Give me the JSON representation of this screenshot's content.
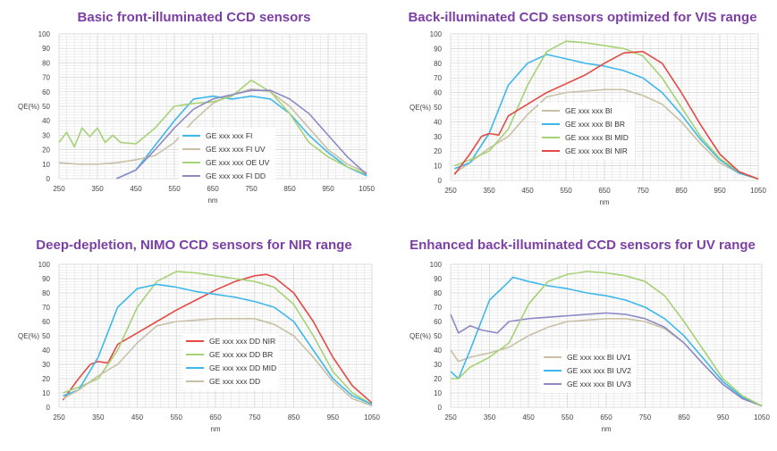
{
  "colors": {
    "blue": "#3db8ea",
    "tan": "#c9c0a6",
    "green": "#a6d276",
    "purple": "#8c89c6",
    "red": "#e34a45",
    "grid": "#d2d2d2",
    "title": "#7b3fa5"
  },
  "chart_data": [
    {
      "type": "line",
      "title": "Basic front-illuminated CCD sensors",
      "xlabel": "nm",
      "ylabel": "QE(%)",
      "xlim": [
        250,
        1050
      ],
      "ylim": [
        0,
        100
      ],
      "xticks": [
        250,
        350,
        450,
        550,
        650,
        750,
        850,
        950,
        1050
      ],
      "yticks": [
        0,
        10,
        20,
        30,
        40,
        50,
        60,
        70,
        80,
        90,
        100
      ],
      "grid": true,
      "legend_position": "center",
      "series": [
        {
          "name": "GE xxx xxx FI",
          "color": "#3db8ea",
          "x": [
            400,
            450,
            500,
            550,
            600,
            650,
            700,
            750,
            800,
            850,
            900,
            950,
            1000,
            1050
          ],
          "y": [
            0,
            6,
            23,
            40,
            55,
            57,
            55,
            57,
            55,
            45,
            30,
            18,
            8,
            2
          ]
        },
        {
          "name": "GE xxx xxx FI UV",
          "color": "#c9c0a6",
          "x": [
            250,
            300,
            350,
            400,
            450,
            500,
            550,
            600,
            650,
            700,
            750,
            800,
            850,
            900,
            950,
            1000,
            1050
          ],
          "y": [
            11,
            10,
            10,
            11,
            13,
            16,
            25,
            40,
            52,
            58,
            62,
            60,
            50,
            35,
            20,
            10,
            4
          ]
        },
        {
          "name": "GE xxx xxx OE UV",
          "color": "#a6d276",
          "x": [
            250,
            270,
            290,
            310,
            330,
            350,
            370,
            390,
            410,
            450,
            500,
            550,
            600,
            650,
            700,
            750,
            800,
            850,
            900,
            950,
            1000,
            1050
          ],
          "y": [
            25,
            32,
            22,
            35,
            29,
            35,
            25,
            30,
            25,
            24,
            35,
            50,
            52,
            53,
            57,
            68,
            60,
            45,
            25,
            15,
            8,
            3
          ]
        },
        {
          "name": "GE xxx xxx FI DD",
          "color": "#8c89c6",
          "x": [
            400,
            450,
            500,
            550,
            600,
            650,
            700,
            750,
            800,
            850,
            900,
            950,
            1000,
            1050
          ],
          "y": [
            0,
            6,
            20,
            35,
            48,
            55,
            58,
            61,
            61,
            55,
            45,
            30,
            15,
            3
          ]
        }
      ]
    },
    {
      "type": "line",
      "title": "Back-illuminated CCD sensors optimized for VIS range",
      "xlabel": "nm",
      "ylabel": "QE(%)",
      "xlim": [
        250,
        1050
      ],
      "ylim": [
        0,
        100
      ],
      "xticks": [
        250,
        350,
        450,
        550,
        650,
        750,
        850,
        950,
        1050
      ],
      "yticks": [
        0,
        10,
        20,
        30,
        40,
        50,
        60,
        70,
        80,
        90,
        100
      ],
      "grid": true,
      "legend_position": "center",
      "series": [
        {
          "name": "GE xxx xxx BI",
          "color": "#c9c0a6",
          "x": [
            260,
            300,
            350,
            400,
            450,
            500,
            550,
            600,
            650,
            700,
            750,
            800,
            850,
            900,
            950,
            1000,
            1050
          ],
          "y": [
            5,
            12,
            22,
            30,
            45,
            57,
            60,
            61,
            62,
            62,
            58,
            52,
            40,
            25,
            12,
            5,
            1
          ]
        },
        {
          "name": "GE xxx xxx BI BR",
          "color": "#3db8ea",
          "x": [
            260,
            300,
            350,
            400,
            450,
            500,
            550,
            600,
            650,
            700,
            750,
            800,
            850,
            900,
            950,
            1000,
            1050
          ],
          "y": [
            8,
            12,
            32,
            65,
            80,
            86,
            83,
            80,
            78,
            75,
            70,
            60,
            45,
            28,
            14,
            5,
            1
          ]
        },
        {
          "name": "GE xxx xxx BI MID",
          "color": "#a6d276",
          "x": [
            260,
            300,
            350,
            400,
            450,
            500,
            550,
            600,
            650,
            700,
            750,
            800,
            850,
            900,
            950,
            1000,
            1050
          ],
          "y": [
            10,
            14,
            20,
            35,
            65,
            88,
            95,
            94,
            92,
            90,
            85,
            70,
            50,
            30,
            15,
            6,
            1
          ]
        },
        {
          "name": "GE xxx xxx BI NIR",
          "color": "#e34a45",
          "x": [
            260,
            300,
            330,
            350,
            375,
            400,
            450,
            500,
            550,
            600,
            650,
            700,
            750,
            800,
            850,
            900,
            950,
            1000,
            1050
          ],
          "y": [
            4,
            18,
            30,
            32,
            31,
            44,
            52,
            60,
            66,
            72,
            80,
            87,
            88,
            80,
            60,
            38,
            18,
            6,
            1
          ]
        }
      ]
    },
    {
      "type": "line",
      "title": "Deep-depletion, NIMO CCD sensors for NIR range",
      "xlabel": "nm",
      "ylabel": "QE(%)",
      "xlim": [
        250,
        1050
      ],
      "ylim": [
        0,
        100
      ],
      "xticks": [
        250,
        350,
        450,
        550,
        650,
        750,
        850,
        950,
        1050
      ],
      "yticks": [
        0,
        10,
        20,
        30,
        40,
        50,
        60,
        70,
        80,
        90,
        100
      ],
      "grid": true,
      "legend_position": "lower center",
      "series": [
        {
          "name": "GE xxx xxx DD NIR",
          "color": "#e34a45",
          "x": [
            260,
            300,
            330,
            350,
            375,
            400,
            450,
            500,
            550,
            600,
            650,
            700,
            750,
            780,
            800,
            850,
            900,
            950,
            1000,
            1050
          ],
          "y": [
            5,
            20,
            30,
            32,
            31,
            44,
            52,
            60,
            68,
            75,
            82,
            88,
            92,
            93,
            91,
            80,
            60,
            35,
            15,
            3
          ]
        },
        {
          "name": "GE xxx xxx DD BR",
          "color": "#a6d276",
          "x": [
            260,
            300,
            350,
            400,
            450,
            500,
            550,
            600,
            650,
            700,
            750,
            800,
            850,
            900,
            950,
            1000,
            1050
          ],
          "y": [
            10,
            14,
            20,
            40,
            70,
            88,
            95,
            94,
            92,
            90,
            88,
            84,
            72,
            50,
            25,
            10,
            2
          ]
        },
        {
          "name": "GE xxx xxx DD MID",
          "color": "#3db8ea",
          "x": [
            260,
            300,
            350,
            400,
            450,
            500,
            550,
            600,
            650,
            700,
            750,
            800,
            850,
            900,
            950,
            1000,
            1050
          ],
          "y": [
            8,
            12,
            35,
            70,
            83,
            86,
            84,
            81,
            79,
            77,
            74,
            70,
            60,
            40,
            20,
            8,
            2
          ]
        },
        {
          "name": "GE xxx xxx DD",
          "color": "#c9c0a6",
          "x": [
            260,
            300,
            350,
            400,
            450,
            500,
            550,
            600,
            650,
            700,
            750,
            800,
            850,
            900,
            950,
            1000,
            1050
          ],
          "y": [
            6,
            12,
            22,
            30,
            45,
            57,
            60,
            61,
            62,
            62,
            62,
            58,
            50,
            35,
            18,
            6,
            1
          ]
        }
      ]
    },
    {
      "type": "line",
      "title": "Enhanced back-illuminated CCD sensors for UV range",
      "xlabel": "nm",
      "ylabel": "QE(%)",
      "xlim": [
        250,
        1050
      ],
      "ylim": [
        0,
        100
      ],
      "xticks": [
        250,
        350,
        450,
        550,
        650,
        750,
        850,
        950,
        1050
      ],
      "yticks": [
        0,
        10,
        20,
        30,
        40,
        50,
        60,
        70,
        80,
        90,
        100
      ],
      "grid": true,
      "legend_position": "lower center",
      "series": [
        {
          "name": "GE xxx xxx BI UV1",
          "color": "#c9c0a6",
          "x": [
            250,
            270,
            300,
            350,
            400,
            450,
            500,
            550,
            600,
            650,
            700,
            750,
            800,
            850,
            900,
            950,
            1000,
            1050
          ],
          "y": [
            40,
            32,
            35,
            38,
            42,
            50,
            56,
            60,
            61,
            62,
            62,
            60,
            55,
            45,
            30,
            16,
            6,
            1
          ]
        },
        {
          "name": "GE xxx xxx BI UV2",
          "color": "#3db8ea",
          "x": [
            250,
            270,
            300,
            350,
            400,
            410,
            450,
            500,
            550,
            600,
            650,
            700,
            750,
            800,
            850,
            900,
            950,
            1000,
            1050
          ],
          "y": [
            25,
            20,
            40,
            75,
            88,
            91,
            88,
            85,
            83,
            80,
            78,
            75,
            70,
            62,
            50,
            34,
            18,
            7,
            1
          ]
        },
        {
          "name": "GE xxx xxx BI UV3",
          "color": "#8c89c6",
          "x": [
            250,
            270,
            300,
            330,
            370,
            400,
            450,
            500,
            550,
            600,
            650,
            700,
            750,
            800,
            850,
            900,
            950,
            1000,
            1050
          ],
          "y": [
            65,
            52,
            57,
            54,
            52,
            60,
            62,
            63,
            64,
            65,
            66,
            65,
            62,
            56,
            45,
            30,
            16,
            6,
            1
          ]
        },
        {
          "name": "",
          "color": "#a6d276",
          "x": [
            250,
            270,
            300,
            350,
            400,
            450,
            500,
            550,
            600,
            650,
            700,
            750,
            800,
            850,
            900,
            950,
            1000,
            1050
          ],
          "y": [
            20,
            20,
            28,
            35,
            45,
            72,
            88,
            93,
            95,
            94,
            92,
            88,
            78,
            60,
            40,
            20,
            8,
            1
          ]
        }
      ]
    }
  ]
}
